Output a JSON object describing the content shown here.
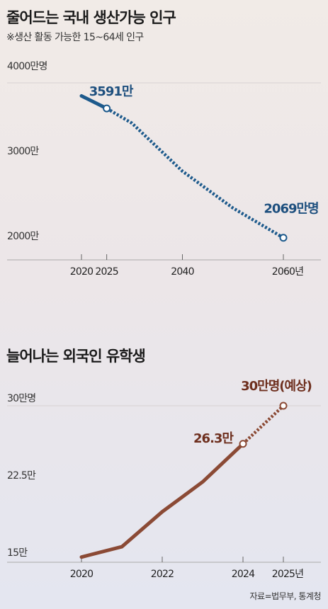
{
  "chart1": {
    "title": "줄어드는 국내 생산가능 인구",
    "subtitle": "※생산 활동 가능한 15~64세 인구"
  },
  "chart2": {
    "title": "늘어나는 외국인 유학생"
  },
  "source": "자료=법무부, 통계청",
  "colors": {
    "chart1_line": "#1d5a8c",
    "chart1_label": "#1d4f7e",
    "chart2_line": "#8b4a35",
    "chart2_label": "#6e2f1e"
  },
  "chart_data": [
    {
      "type": "line",
      "title": "줄어드는 국내 생산가능 인구",
      "subtitle": "※생산 활동 가능한 15~64세 인구",
      "y_ticks": [
        {
          "value": 4000,
          "label": "4000만명"
        },
        {
          "value": 3000,
          "label": "3000만"
        },
        {
          "value": 2000,
          "label": "2000만"
        }
      ],
      "x_ticks": [
        {
          "value": 2020,
          "label": "2020"
        },
        {
          "value": 2025,
          "label": "2025"
        },
        {
          "value": 2040,
          "label": "2040"
        },
        {
          "value": 2060,
          "label": "2060년"
        }
      ],
      "xlim": [
        2020,
        2060
      ],
      "ylim": [
        2000,
        4000
      ],
      "series": [
        {
          "style": "actual",
          "points": [
            {
              "x": 2020,
              "y": 3738
            },
            {
              "x": 2025,
              "y": 3591
            }
          ]
        },
        {
          "style": "projected",
          "points": [
            {
              "x": 2025,
              "y": 3591
            },
            {
              "x": 2030,
              "y": 3417
            },
            {
              "x": 2040,
              "y": 2852
            },
            {
              "x": 2050,
              "y": 2419
            },
            {
              "x": 2060,
              "y": 2069
            }
          ]
        }
      ],
      "annotations": [
        {
          "x": 2025,
          "y": 3591,
          "label": "3591만"
        },
        {
          "x": 2060,
          "y": 2069,
          "label": "2069만명"
        }
      ],
      "grid": false
    },
    {
      "type": "line",
      "title": "늘어나는 외국인 유학생",
      "y_ticks": [
        {
          "value": 30,
          "label": "30만명"
        },
        {
          "value": 22.5,
          "label": "22.5만"
        },
        {
          "value": 15,
          "label": "15만"
        }
      ],
      "x_ticks": [
        {
          "value": 2020,
          "label": "2020"
        },
        {
          "value": 2022,
          "label": "2022"
        },
        {
          "value": 2024,
          "label": "2024"
        },
        {
          "value": 2025,
          "label": "2025년"
        }
      ],
      "xlim": [
        2020,
        2025
      ],
      "ylim": [
        15,
        30
      ],
      "series": [
        {
          "style": "actual",
          "points": [
            {
              "x": 2020,
              "y": 15.3
            },
            {
              "x": 2021,
              "y": 16.3
            },
            {
              "x": 2022,
              "y": 19.7
            },
            {
              "x": 2023,
              "y": 22.6
            },
            {
              "x": 2024,
              "y": 26.3
            }
          ]
        },
        {
          "style": "projected",
          "points": [
            {
              "x": 2024,
              "y": 26.3
            },
            {
              "x": 2025,
              "y": 30
            }
          ]
        }
      ],
      "annotations": [
        {
          "x": 2024,
          "y": 26.3,
          "label": "26.3만"
        },
        {
          "x": 2025,
          "y": 30,
          "label": "30만명(예상)"
        }
      ],
      "grid": false
    }
  ]
}
